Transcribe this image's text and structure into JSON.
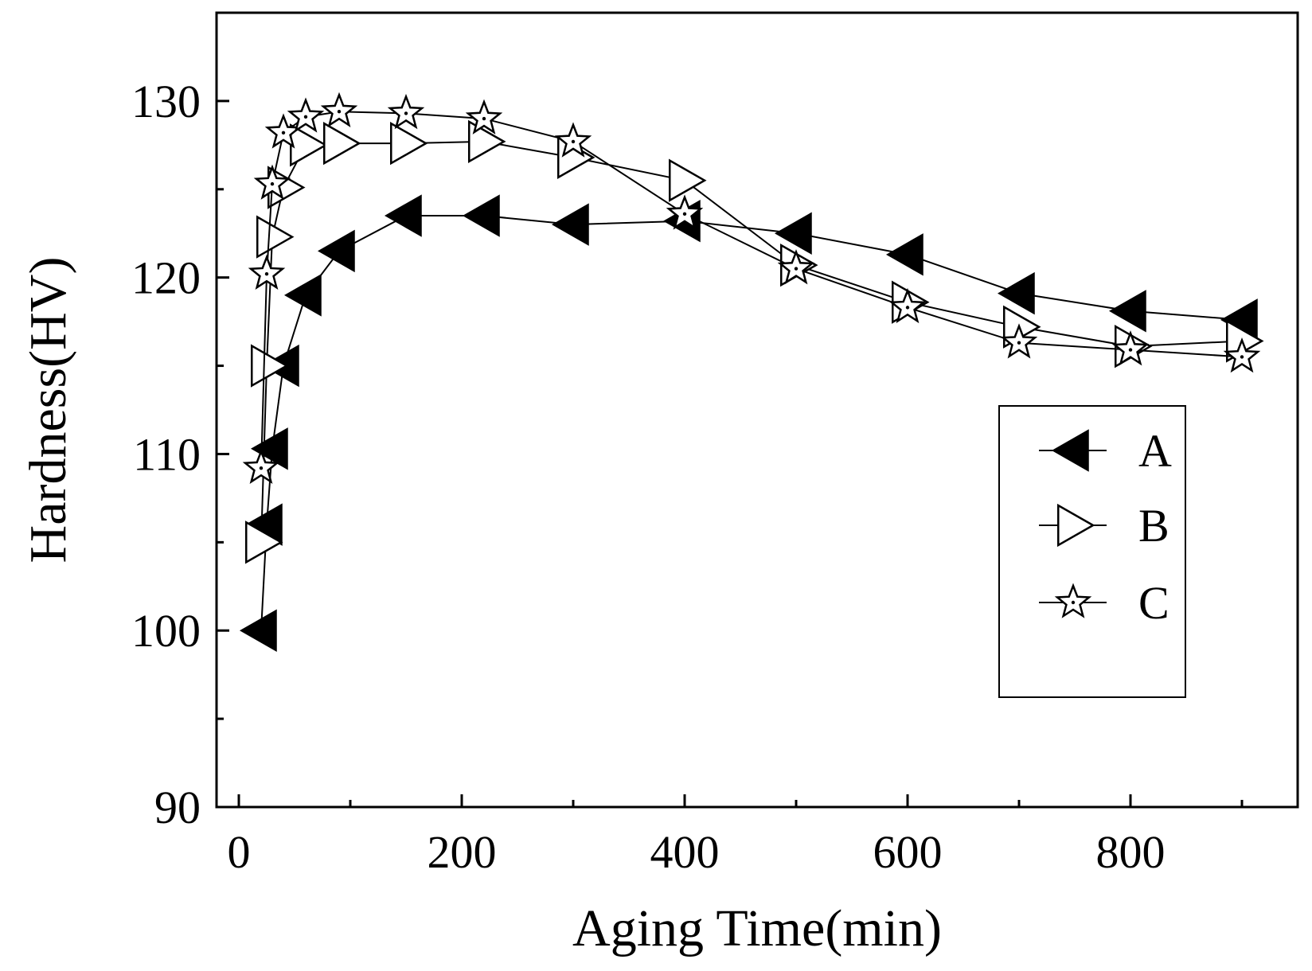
{
  "chart_data": {
    "type": "line",
    "xlabel": "Aging Time(min)",
    "ylabel": "Hardness(HV)",
    "xlim": [
      -20,
      950
    ],
    "ylim": [
      90,
      135
    ],
    "x_ticks": [
      0,
      200,
      400,
      600,
      800
    ],
    "y_ticks": [
      90,
      100,
      110,
      120,
      130
    ],
    "grid": false,
    "legend_position": "right-middle",
    "series": [
      {
        "name": "A",
        "marker": "left-triangle-filled",
        "x": [
          20,
          25,
          30,
          40,
          60,
          90,
          150,
          220,
          300,
          400,
          500,
          600,
          700,
          800,
          900
        ],
        "y": [
          100,
          106,
          110.3,
          115,
          119,
          121.5,
          123.5,
          123.5,
          123,
          123.2,
          122.5,
          121.3,
          119.1,
          118.1,
          117.6
        ]
      },
      {
        "name": "B",
        "marker": "right-triangle-open",
        "x": [
          20,
          25,
          30,
          40,
          60,
          90,
          150,
          220,
          300,
          400,
          500,
          600,
          700,
          800,
          900
        ],
        "y": [
          105,
          115,
          122.3,
          125.1,
          127.5,
          127.6,
          127.6,
          127.7,
          126.8,
          125.5,
          120.7,
          118.6,
          117.2,
          116.1,
          116.4
        ]
      },
      {
        "name": "C",
        "marker": "star-open",
        "x": [
          20,
          25,
          30,
          40,
          60,
          90,
          150,
          220,
          300,
          400,
          500,
          600,
          700,
          800,
          900
        ],
        "y": [
          109.2,
          120.2,
          125.3,
          128.2,
          129.1,
          129.4,
          129.3,
          129,
          127.7,
          123.6,
          120.5,
          118.3,
          116.3,
          115.9,
          115.5
        ]
      }
    ]
  }
}
